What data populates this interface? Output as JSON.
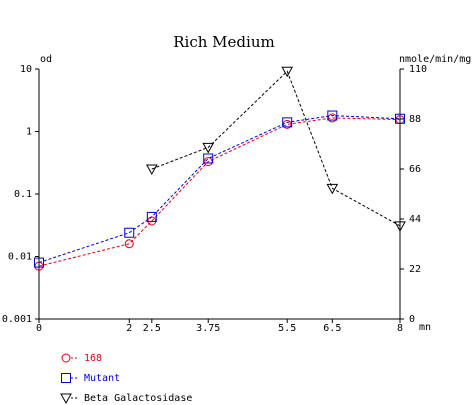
{
  "chart_data": {
    "type": "line",
    "title": "Rich Medium",
    "x_unit": "mn",
    "left_axis": {
      "label": "od",
      "scale": "log",
      "ylim": [
        0.001,
        10
      ],
      "ticks": [
        0.001,
        0.01,
        0.1,
        1,
        10
      ],
      "tick_labels": [
        "0.001",
        "0.01",
        "0.1",
        "1",
        "10"
      ]
    },
    "right_axis": {
      "label": "nmole/min/mg",
      "scale": "linear",
      "ylim": [
        0,
        110
      ],
      "ticks": [
        0,
        22,
        44,
        66,
        88,
        110
      ],
      "tick_labels": [
        "0",
        "22",
        "44",
        "66",
        "88",
        "110"
      ]
    },
    "x_axis": {
      "xlim": [
        0,
        8
      ],
      "ticks": [
        0,
        2,
        2.5,
        3.75,
        5.5,
        6.5,
        8
      ],
      "tick_labels": [
        "0",
        "2",
        "2.5",
        "3.75",
        "5.5",
        "6.5",
        "8"
      ]
    },
    "series": [
      {
        "name": "168",
        "axis": "left",
        "color": "#e0001b",
        "marker": "circle",
        "x": [
          0,
          2,
          2.5,
          3.75,
          5.5,
          6.5,
          8
        ],
        "y": [
          0.007,
          0.016,
          0.037,
          0.33,
          1.3,
          1.65,
          1.55
        ]
      },
      {
        "name": "Mutant",
        "axis": "left",
        "color": "#0000cc",
        "marker": "square",
        "x": [
          0,
          2,
          2.5,
          3.75,
          5.5,
          6.5,
          8
        ],
        "y": [
          0.008,
          0.024,
          0.043,
          0.37,
          1.4,
          1.8,
          1.6
        ]
      },
      {
        "name": "Beta Galactosidase",
        "axis": "right",
        "color": "#000000",
        "marker": "triangle-down",
        "x": [
          2.5,
          3.75,
          5.5,
          6.5,
          8
        ],
        "y": [
          66,
          75.5,
          109,
          57.5,
          41
        ]
      }
    ],
    "grid": false,
    "legend_position": "bottom-left"
  }
}
